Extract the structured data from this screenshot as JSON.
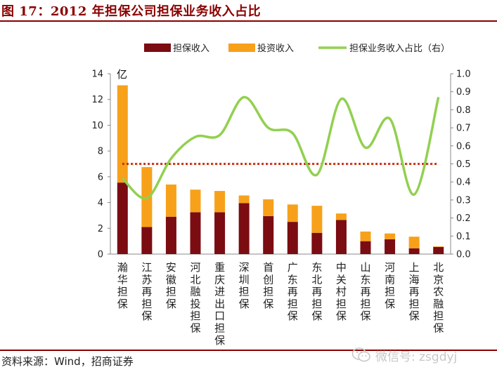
{
  "header": {
    "title": "图 17：2012 年担保公司担保业务收入占比"
  },
  "footer": {
    "source": "资料来源：Wind，招商证券"
  },
  "watermark": {
    "text": "微信号: zsgdyj",
    "icon": "wechat-icon"
  },
  "colors": {
    "guarantee": "#7b0c12",
    "investment": "#f7a11a",
    "ratio": "#92d050",
    "refline": "#c00000",
    "refdots": "#f0c020",
    "title": "#8b0000"
  },
  "chart_data": {
    "type": "bar",
    "stacked": true,
    "unit_label": "亿",
    "categories": [
      "瀚华担保",
      "江苏再担保",
      "安徽担保",
      "河北融投担保",
      "重庆进出口担保",
      "深圳担保",
      "首创担保",
      "广东再担保",
      "东北再担保",
      "中关村担保",
      "山东再担保",
      "河南担保",
      "上海再担保",
      "北京农融担保"
    ],
    "series": [
      {
        "name": "担保收入",
        "axis": "left",
        "values": [
          5.55,
          2.1,
          2.9,
          3.25,
          3.25,
          3.95,
          2.95,
          2.5,
          1.65,
          2.65,
          1.0,
          1.15,
          0.45,
          0.55
        ]
      },
      {
        "name": "投资收入",
        "axis": "left",
        "values": [
          7.55,
          4.65,
          2.5,
          1.75,
          1.65,
          0.6,
          1.3,
          1.35,
          2.1,
          0.5,
          0.75,
          0.45,
          0.9,
          0.05
        ]
      },
      {
        "name": "担保业务收入占比（右）",
        "axis": "right",
        "type": "line",
        "values": [
          0.42,
          0.31,
          0.53,
          0.65,
          0.66,
          0.87,
          0.7,
          0.67,
          0.44,
          0.86,
          0.59,
          0.75,
          0.33,
          0.87
        ]
      }
    ],
    "reference_line": {
      "axis": "right",
      "value": 0.5
    },
    "left_axis": {
      "ylim": [
        0,
        14
      ],
      "ticks": [
        "0",
        "2",
        "4",
        "6",
        "8",
        "10",
        "12",
        "14"
      ]
    },
    "right_axis": {
      "ylim": [
        0,
        1.0
      ],
      "ticks": [
        "0.0",
        "0.1",
        "0.2",
        "0.3",
        "0.4",
        "0.5",
        "0.6",
        "0.7",
        "0.8",
        "0.9",
        "1.0"
      ]
    },
    "legend": {
      "placement": "top",
      "items": [
        "担保收入",
        "投资收入",
        "担保业务收入占比（右）"
      ]
    }
  }
}
